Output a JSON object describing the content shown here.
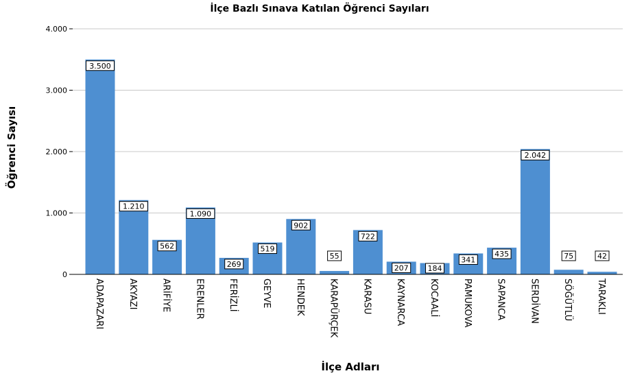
{
  "chart_data": {
    "type": "bar",
    "title": "İlçe Bazlı Sınava Katılan Öğrenci Sayıları",
    "xlabel": "İlçe Adları",
    "ylabel": "Öğrenci Sayısı",
    "ylim": [
      0,
      4000
    ],
    "yticks": [
      0,
      1000,
      2000,
      3000,
      4000
    ],
    "ytick_labels": [
      "0",
      "1.000",
      "2.000",
      "3.000",
      "4.000"
    ],
    "grid": true,
    "bar_color": "#4e8fd1",
    "categories": [
      "ADAPAZARI",
      "AKYAZI",
      "ARİFİYE",
      "ERENLER",
      "FERİZLİ",
      "GEYVE",
      "HENDEK",
      "KARAPÜRÇEK",
      "KARASU",
      "KAYNARCA",
      "KOCAALİ",
      "PAMUKOVA",
      "SAPANCA",
      "SERDİVAN",
      "SÖĞÜTLÜ",
      "TARAKLI"
    ],
    "values": [
      3500,
      1210,
      562,
      1090,
      269,
      519,
      902,
      55,
      722,
      207,
      184,
      341,
      435,
      2042,
      75,
      42
    ],
    "value_labels": [
      "3.500",
      "1.210",
      "562",
      "1.090",
      "269",
      "519",
      "902",
      "55",
      "722",
      "207",
      "184",
      "341",
      "435",
      "2.042",
      "75",
      "42"
    ]
  }
}
